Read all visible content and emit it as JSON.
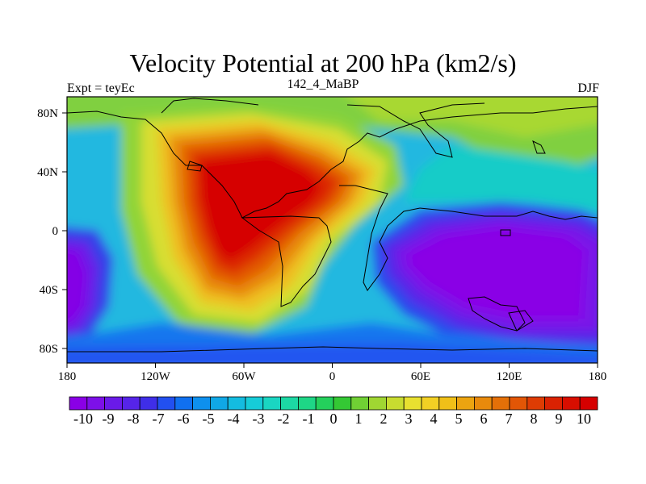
{
  "title": "Velocity Potential at 200 hPa (km2/s)",
  "subtitle_left": "Expt = teyEc",
  "subtitle_center": "142_4_MaBP",
  "subtitle_right": "DJF",
  "map": {
    "lon_ticks": [
      "180",
      "120W",
      "60W",
      "0",
      "60E",
      "120E",
      "180"
    ],
    "lat_ticks": [
      "80N",
      "40N",
      "0",
      "40S",
      "80S"
    ],
    "field_features": [
      {
        "name": "max",
        "lon": -45,
        "lat": 25,
        "value": 10
      },
      {
        "name": "min",
        "lon": 120,
        "lat": -20,
        "value": -10
      },
      {
        "name": "min-west",
        "lon": -175,
        "lat": -35,
        "value": -9
      }
    ]
  },
  "colorbar": {
    "labels": [
      "-10",
      "-9",
      "-8",
      "-7",
      "-6",
      "-5",
      "-4",
      "-3",
      "-2",
      "-1",
      "0",
      "1",
      "2",
      "3",
      "4",
      "5",
      "6",
      "7",
      "8",
      "9",
      "10"
    ],
    "colors": [
      "#8a00e6",
      "#7d10e8",
      "#6a1ae8",
      "#5624e8",
      "#3f2ee8",
      "#2250f0",
      "#1070f0",
      "#0e90ee",
      "#10a8e6",
      "#14bce0",
      "#16ccd8",
      "#1ad6c2",
      "#1cd8a4",
      "#1ed686",
      "#24d05c",
      "#34c834",
      "#70d034",
      "#a0d632",
      "#c8dc30",
      "#e8e030",
      "#f2d024",
      "#f0c018",
      "#eca410",
      "#e88a0c",
      "#e47008",
      "#e25606",
      "#de3c04",
      "#da2202",
      "#d80e00",
      "#d60000"
    ]
  }
}
